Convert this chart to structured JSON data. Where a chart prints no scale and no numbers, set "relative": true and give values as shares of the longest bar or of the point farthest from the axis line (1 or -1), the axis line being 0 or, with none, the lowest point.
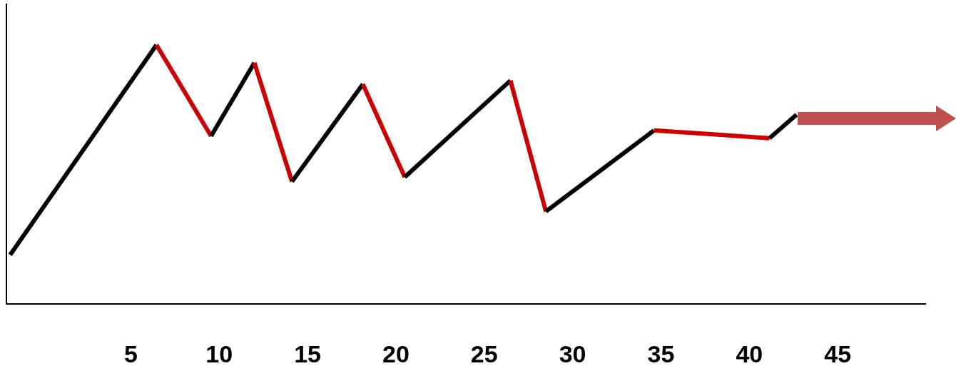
{
  "chart_data": {
    "type": "line",
    "relative": true,
    "xlim": [
      -2,
      50
    ],
    "xticks": [
      5,
      10,
      15,
      20,
      25,
      30,
      35,
      40,
      45
    ],
    "grid": false,
    "marker": "none",
    "line_style": "solid",
    "series": [
      {
        "color": "#000000",
        "x": [
          -1.83,
          6.45
        ],
        "values": [
          0.187,
          1
        ]
      },
      {
        "color": "#cc0000",
        "x": [
          6.45,
          9.54
        ],
        "values": [
          1,
          0.647
        ]
      },
      {
        "color": "#000000",
        "x": [
          9.54,
          11.99
        ],
        "values": [
          0.647,
          0.931
        ]
      },
      {
        "color": "#cc0000",
        "x": [
          11.99,
          14.12
        ],
        "values": [
          0.931,
          0.471
        ]
      },
      {
        "color": "#000000",
        "x": [
          14.12,
          18.13
        ],
        "values": [
          0.471,
          0.848
        ]
      },
      {
        "color": "#cc0000",
        "x": [
          18.13,
          20.5
        ],
        "values": [
          0.848,
          0.488
        ]
      },
      {
        "color": "#000000",
        "x": [
          20.5,
          26.48
        ],
        "values": [
          0.488,
          0.862
        ]
      },
      {
        "color": "#cc0000",
        "x": [
          26.48,
          28.49
        ],
        "values": [
          0.862,
          0.355
        ]
      },
      {
        "color": "#000000",
        "x": [
          28.49,
          34.6
        ],
        "values": [
          0.355,
          0.669
        ]
      },
      {
        "color": "#cc0000",
        "x": [
          34.6,
          41.14
        ],
        "values": [
          0.669,
          0.639
        ]
      },
      {
        "color": "#000000",
        "x": [
          41.14,
          42.67
        ],
        "values": [
          0.639,
          0.73
        ]
      }
    ]
  }
}
